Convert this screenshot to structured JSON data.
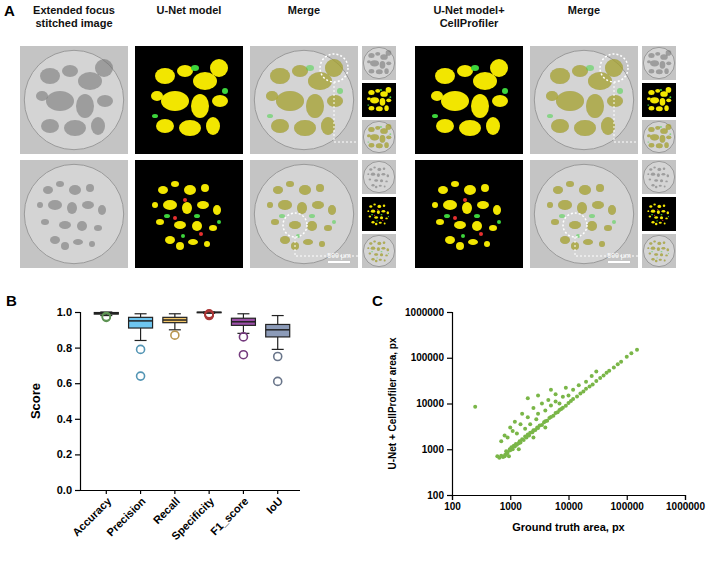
{
  "panel_a": {
    "panel": "A",
    "columns": [
      "Extended focus stitched image",
      "U-Net model",
      "Merge",
      "U-Net model+ CellProfiler",
      "Merge"
    ],
    "scale_bar": "500 µm"
  },
  "chart_data": [
    {
      "type": "box",
      "panel": "B",
      "ylabel": "Score",
      "categories": [
        "Accuracy",
        "Precision",
        "Recall",
        "Specificity",
        "F1_score",
        "IoU"
      ],
      "boxes": [
        {
          "min": 0.98,
          "q1": 0.988,
          "median": 0.993,
          "q3": 0.997,
          "max": 1.0,
          "outliers": [
            0.97,
            0.975
          ]
        },
        {
          "min": 0.84,
          "q1": 0.91,
          "median": 0.95,
          "q3": 0.97,
          "max": 0.99,
          "outliers": [
            0.79,
            0.64
          ]
        },
        {
          "min": 0.9,
          "q1": 0.94,
          "median": 0.955,
          "q3": 0.97,
          "max": 0.99,
          "outliers": [
            0.87
          ]
        },
        {
          "min": 0.993,
          "q1": 0.996,
          "median": 0.998,
          "q3": 0.999,
          "max": 1.0,
          "outliers": [
            0.98,
            0.985,
            0.985,
            0.99
          ]
        },
        {
          "min": 0.88,
          "q1": 0.925,
          "median": 0.945,
          "q3": 0.965,
          "max": 0.99,
          "outliers": [
            0.86,
            0.76
          ]
        },
        {
          "min": 0.79,
          "q1": 0.86,
          "median": 0.9,
          "q3": 0.93,
          "max": 0.98,
          "outliers": [
            0.75,
            0.61
          ]
        }
      ],
      "colors": [
        "#7cc36e",
        "#6ec6f0",
        "#f6c96a",
        "#e34b4b",
        "#9c4fa8",
        "#8c9bb8"
      ],
      "ylim": [
        0,
        1.0
      ],
      "yticks": [
        {
          "value": 0,
          "label": "0.0"
        },
        {
          "value": 0.2,
          "label": "0.2"
        },
        {
          "value": 0.4,
          "label": "0.4"
        },
        {
          "value": 0.6,
          "label": "0.6"
        },
        {
          "value": 0.8,
          "label": "0.8"
        },
        {
          "value": 1.0,
          "label": "1.0"
        }
      ]
    },
    {
      "type": "scatter",
      "panel": "C",
      "log": true,
      "color": "#7ab648",
      "marker": "circle",
      "xlabel": "Ground truth area, px",
      "ylabel": "U-Net + CellProfiler area, px",
      "xlim": [
        100,
        1000000
      ],
      "ylim": [
        100,
        1000000
      ],
      "xticks": [
        100,
        1000,
        10000,
        100000,
        1000000
      ],
      "yticks": [
        100,
        1000,
        10000,
        100000,
        1000000
      ],
      "x": [
        600,
        650,
        700,
        750,
        800,
        820,
        850,
        880,
        900,
        950,
        980,
        1000,
        1050,
        1100,
        1150,
        1200,
        1250,
        1300,
        1400,
        1450,
        1500,
        1600,
        1700,
        1800,
        1900,
        2000,
        2100,
        2200,
        2400,
        2500,
        2700,
        2900,
        3000,
        3200,
        3500,
        3800,
        4000,
        4300,
        4700,
        5000,
        5500,
        6000,
        6500,
        7000,
        7500,
        8000,
        9000,
        10000,
        11000,
        12000,
        14000,
        16000,
        18000,
        20000,
        23000,
        26000,
        30000,
        35000,
        40000,
        45000,
        50000,
        60000,
        70000,
        80000,
        100000,
        120000,
        150000,
        250,
        700,
        800,
        900,
        1000,
        1100,
        1200,
        1300,
        1500,
        1600,
        1800,
        2000,
        2000,
        2200,
        2500,
        2800,
        3000,
        3000,
        3500,
        4000,
        4500,
        5000,
        5000,
        6000,
        6000,
        7000,
        8000,
        9000,
        10000,
        12000,
        15000,
        20000,
        25000,
        30000,
        1400,
        2500,
        4000
      ],
      "values": [
        700,
        650,
        720,
        680,
        700,
        760,
        900,
        800,
        850,
        700,
        1000,
        950,
        1100,
        1000,
        1200,
        1150,
        1300,
        1250,
        1350,
        1500,
        1400,
        1650,
        1600,
        1900,
        1800,
        2100,
        2000,
        2300,
        2350,
        2600,
        2650,
        3000,
        2900,
        3300,
        3400,
        3900,
        4100,
        4200,
        4800,
        5100,
        5400,
        6200,
        6400,
        7200,
        7600,
        8100,
        8900,
        10200,
        11300,
        12500,
        14200,
        16500,
        18300,
        21000,
        23500,
        26000,
        31000,
        36000,
        41000,
        47000,
        52000,
        61000,
        72000,
        82000,
        105000,
        125000,
        150000,
        8500,
        1500,
        2000,
        1800,
        3000,
        2500,
        4000,
        2200,
        3500,
        6000,
        2800,
        5000,
        13000,
        3500,
        8000,
        4500,
        15000,
        6000,
        10000,
        7000,
        12000,
        9000,
        20000,
        11000,
        16000,
        10000,
        14000,
        22000,
        15000,
        20000,
        25000,
        30000,
        40000,
        50000,
        1000,
        1800,
        3000
      ]
    }
  ]
}
